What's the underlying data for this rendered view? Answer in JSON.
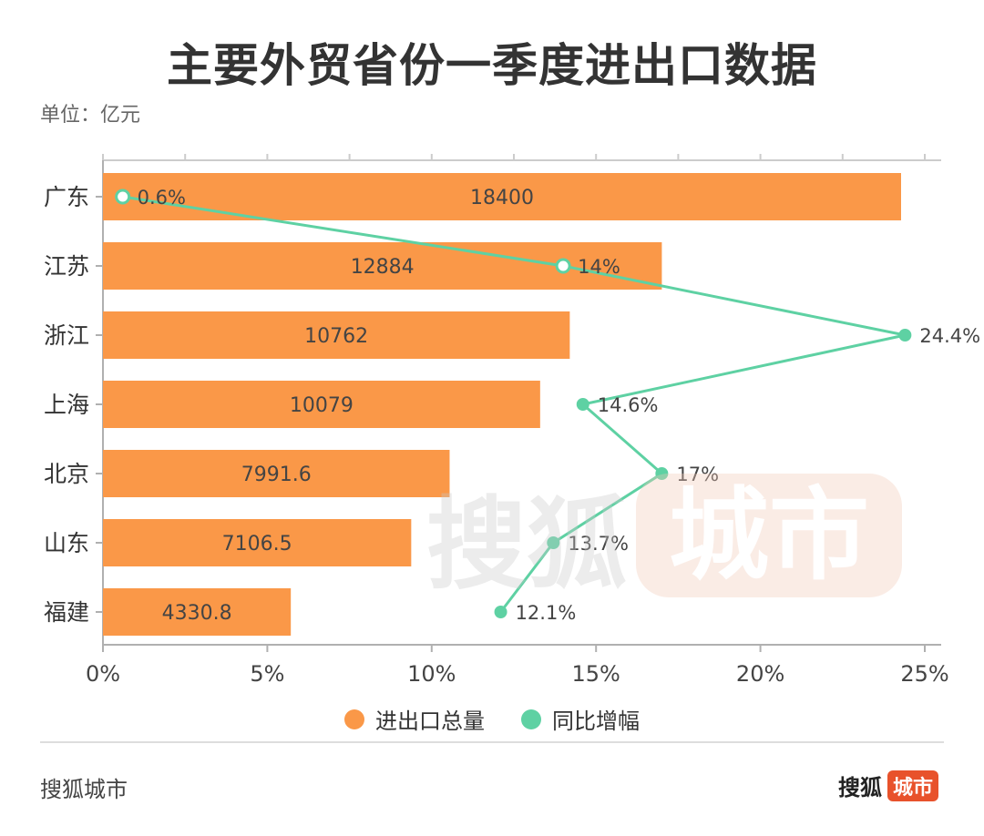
{
  "title": "主要外贸省份一季度进出口数据",
  "unit_label": "单位：亿元",
  "colors": {
    "bar": "#fa9848",
    "line": "#5ed1a3",
    "axis": "#b0b0b0",
    "grid": "#cccccc"
  },
  "chart_data": {
    "type": "bar",
    "orientation": "horizontal",
    "categories": [
      "广东",
      "江苏",
      "浙江",
      "上海",
      "北京",
      "山东",
      "福建"
    ],
    "series": [
      {
        "name": "进出口总量",
        "type": "bar",
        "values": [
          18400,
          12884,
          10762,
          10079,
          7991.6,
          7106.5,
          4330.8
        ],
        "labels": [
          "18400",
          "12884",
          "10762",
          "10079",
          "7991.6",
          "7106.5",
          "4330.8"
        ]
      },
      {
        "name": "同比增幅",
        "type": "line",
        "values": [
          0.6,
          14,
          24.4,
          14.6,
          17,
          13.7,
          12.1
        ],
        "labels": [
          "0.6%",
          "14%",
          "24.4%",
          "14.6%",
          "17%",
          "13.7%",
          "12.1%"
        ]
      }
    ],
    "x_axis": {
      "min": 0,
      "max": 25,
      "ticks": [
        "0%",
        "5%",
        "10%",
        "15%",
        "20%",
        "25%"
      ]
    },
    "legend": "bottom"
  },
  "watermark": {
    "text": "搜狐",
    "badge": "城市"
  },
  "footer": {
    "left": "搜狐城市",
    "right_text": "搜狐",
    "right_badge": "城市"
  }
}
